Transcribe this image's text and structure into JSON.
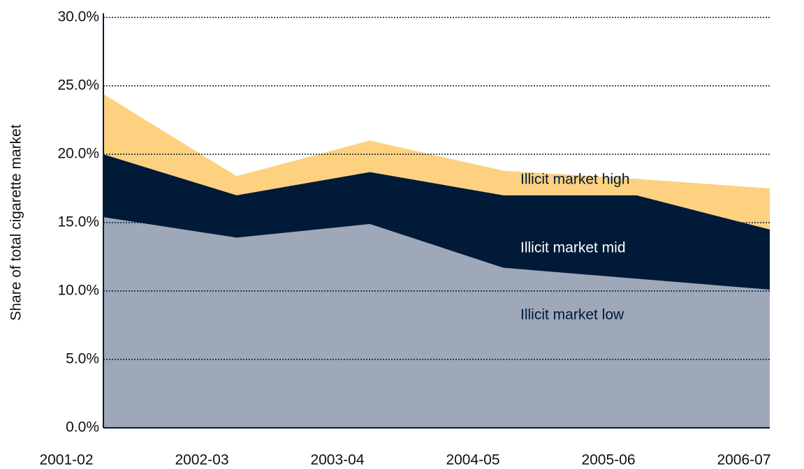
{
  "chart_data": {
    "type": "stacked_area",
    "y_axis_label": "Share of total cigarette market",
    "categories": [
      "2001-02",
      "2002-03",
      "2003-04",
      "2004-05",
      "2005-06",
      "2006-07"
    ],
    "series": [
      {
        "name": "Illicit market low",
        "color": "#9ea8b8",
        "label_color": "#001a38",
        "values": [
          15.4,
          13.9,
          14.9,
          11.7,
          10.9,
          10.1
        ]
      },
      {
        "name": "Illicit market mid",
        "color": "#001a38",
        "label_color": "#ffffff",
        "values": [
          4.6,
          3.1,
          3.8,
          5.3,
          6.1,
          4.4
        ]
      },
      {
        "name": "Illicit market high",
        "color": "#fdd17f",
        "label_color": "#001a38",
        "values": [
          4.4,
          1.4,
          2.3,
          1.8,
          1.2,
          3.0
        ]
      }
    ],
    "ylim": [
      0,
      30
    ],
    "yticks": [
      {
        "value": 0,
        "label": "0.0%"
      },
      {
        "value": 5,
        "label": "5.0%"
      },
      {
        "value": 10,
        "label": "10.0%"
      },
      {
        "value": 15,
        "label": "15.0%"
      },
      {
        "value": 20,
        "label": "20.0%"
      },
      {
        "value": 25,
        "label": "25.0%"
      },
      {
        "value": 30,
        "label": "30.0%"
      }
    ],
    "grid": true
  }
}
